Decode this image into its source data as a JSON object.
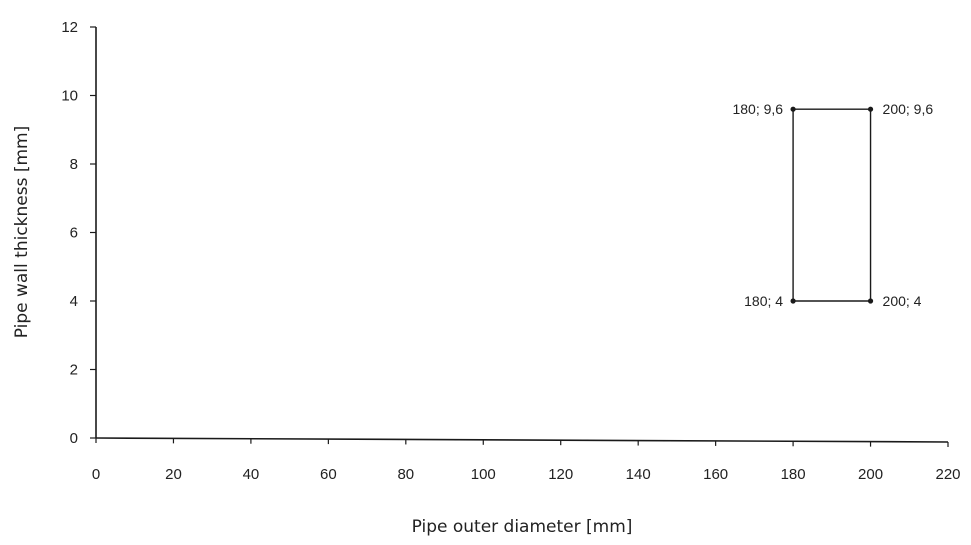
{
  "chart_data": {
    "type": "scatter",
    "xlabel": "Pipe outer diameter [mm]",
    "ylabel": "Pipe wall thickness [mm]",
    "xlim": [
      0,
      220
    ],
    "ylim": [
      0,
      12
    ],
    "x_ticks": [
      0,
      20,
      40,
      60,
      80,
      100,
      120,
      140,
      160,
      180,
      200,
      220
    ],
    "y_ticks": [
      0,
      2,
      4,
      6,
      8,
      10,
      12
    ],
    "x_tick_labels": [
      "0",
      "20",
      "40",
      "60",
      "80",
      "100",
      "120",
      "140",
      "160",
      "180",
      "200",
      "220"
    ],
    "y_tick_labels": [
      "0",
      "2",
      "4",
      "6",
      "8",
      "10",
      "12"
    ],
    "grid": false,
    "series": [
      {
        "points": [
          {
            "x": 180,
            "y": 9.6,
            "label": "180; 9,6"
          },
          {
            "x": 200,
            "y": 9.6,
            "label": "200; 9,6"
          },
          {
            "x": 200,
            "y": 4,
            "label": "200; 4"
          },
          {
            "x": 180,
            "y": 4,
            "label": "180; 4"
          }
        ],
        "closed": true
      }
    ],
    "colors": {
      "line": "#1a1a1a",
      "text": "#222222"
    }
  }
}
